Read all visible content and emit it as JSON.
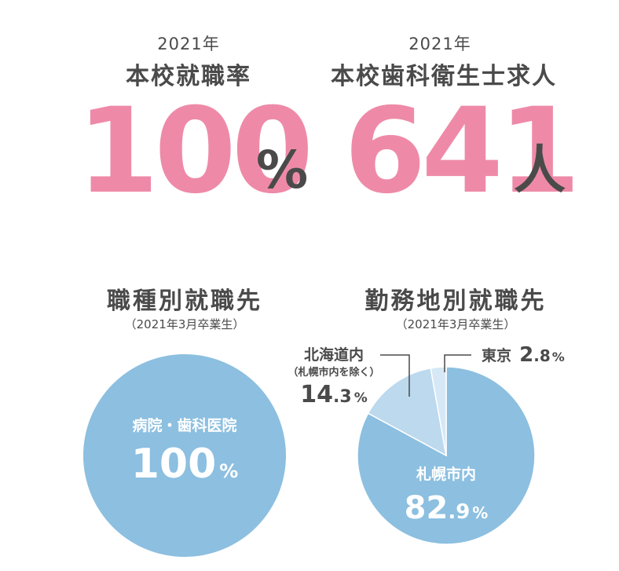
{
  "stats": [
    {
      "year": "2021年",
      "label": "本校就職率",
      "value": "100",
      "unit": "%"
    },
    {
      "year": "2021年",
      "label": "本校歯科衛生士求人",
      "value": "641",
      "unit": "人"
    }
  ],
  "colors": {
    "pink": "#ee8aa8",
    "dark_text": "#4a4a4a",
    "blue": "#8cbfe0",
    "light_blue": "#bcd9ee",
    "lightest_blue": "#d6e8f5"
  },
  "chart_data": [
    {
      "type": "pie",
      "title": "職種別就職先",
      "subtitle": "（2021年3月卒業生）",
      "slices": [
        {
          "label": "病院・歯科医院",
          "value": 100,
          "value_text": "100",
          "unit": "%"
        }
      ]
    },
    {
      "type": "pie",
      "title": "勤務地別就職先",
      "subtitle": "（2021年3月卒業生）",
      "slices": [
        {
          "label": "札幌市内",
          "value": 82.9,
          "value_int": "82",
          "value_dec": ".9",
          "unit": "%"
        },
        {
          "label": "北海道内",
          "sublabel": "（札幌市内を除く）",
          "value": 14.3,
          "value_int": "14",
          "value_dec": ".3",
          "unit": "%"
        },
        {
          "label": "東京",
          "value": 2.8,
          "value_int": "2",
          "value_dec": ".8",
          "unit": "%"
        }
      ]
    }
  ]
}
